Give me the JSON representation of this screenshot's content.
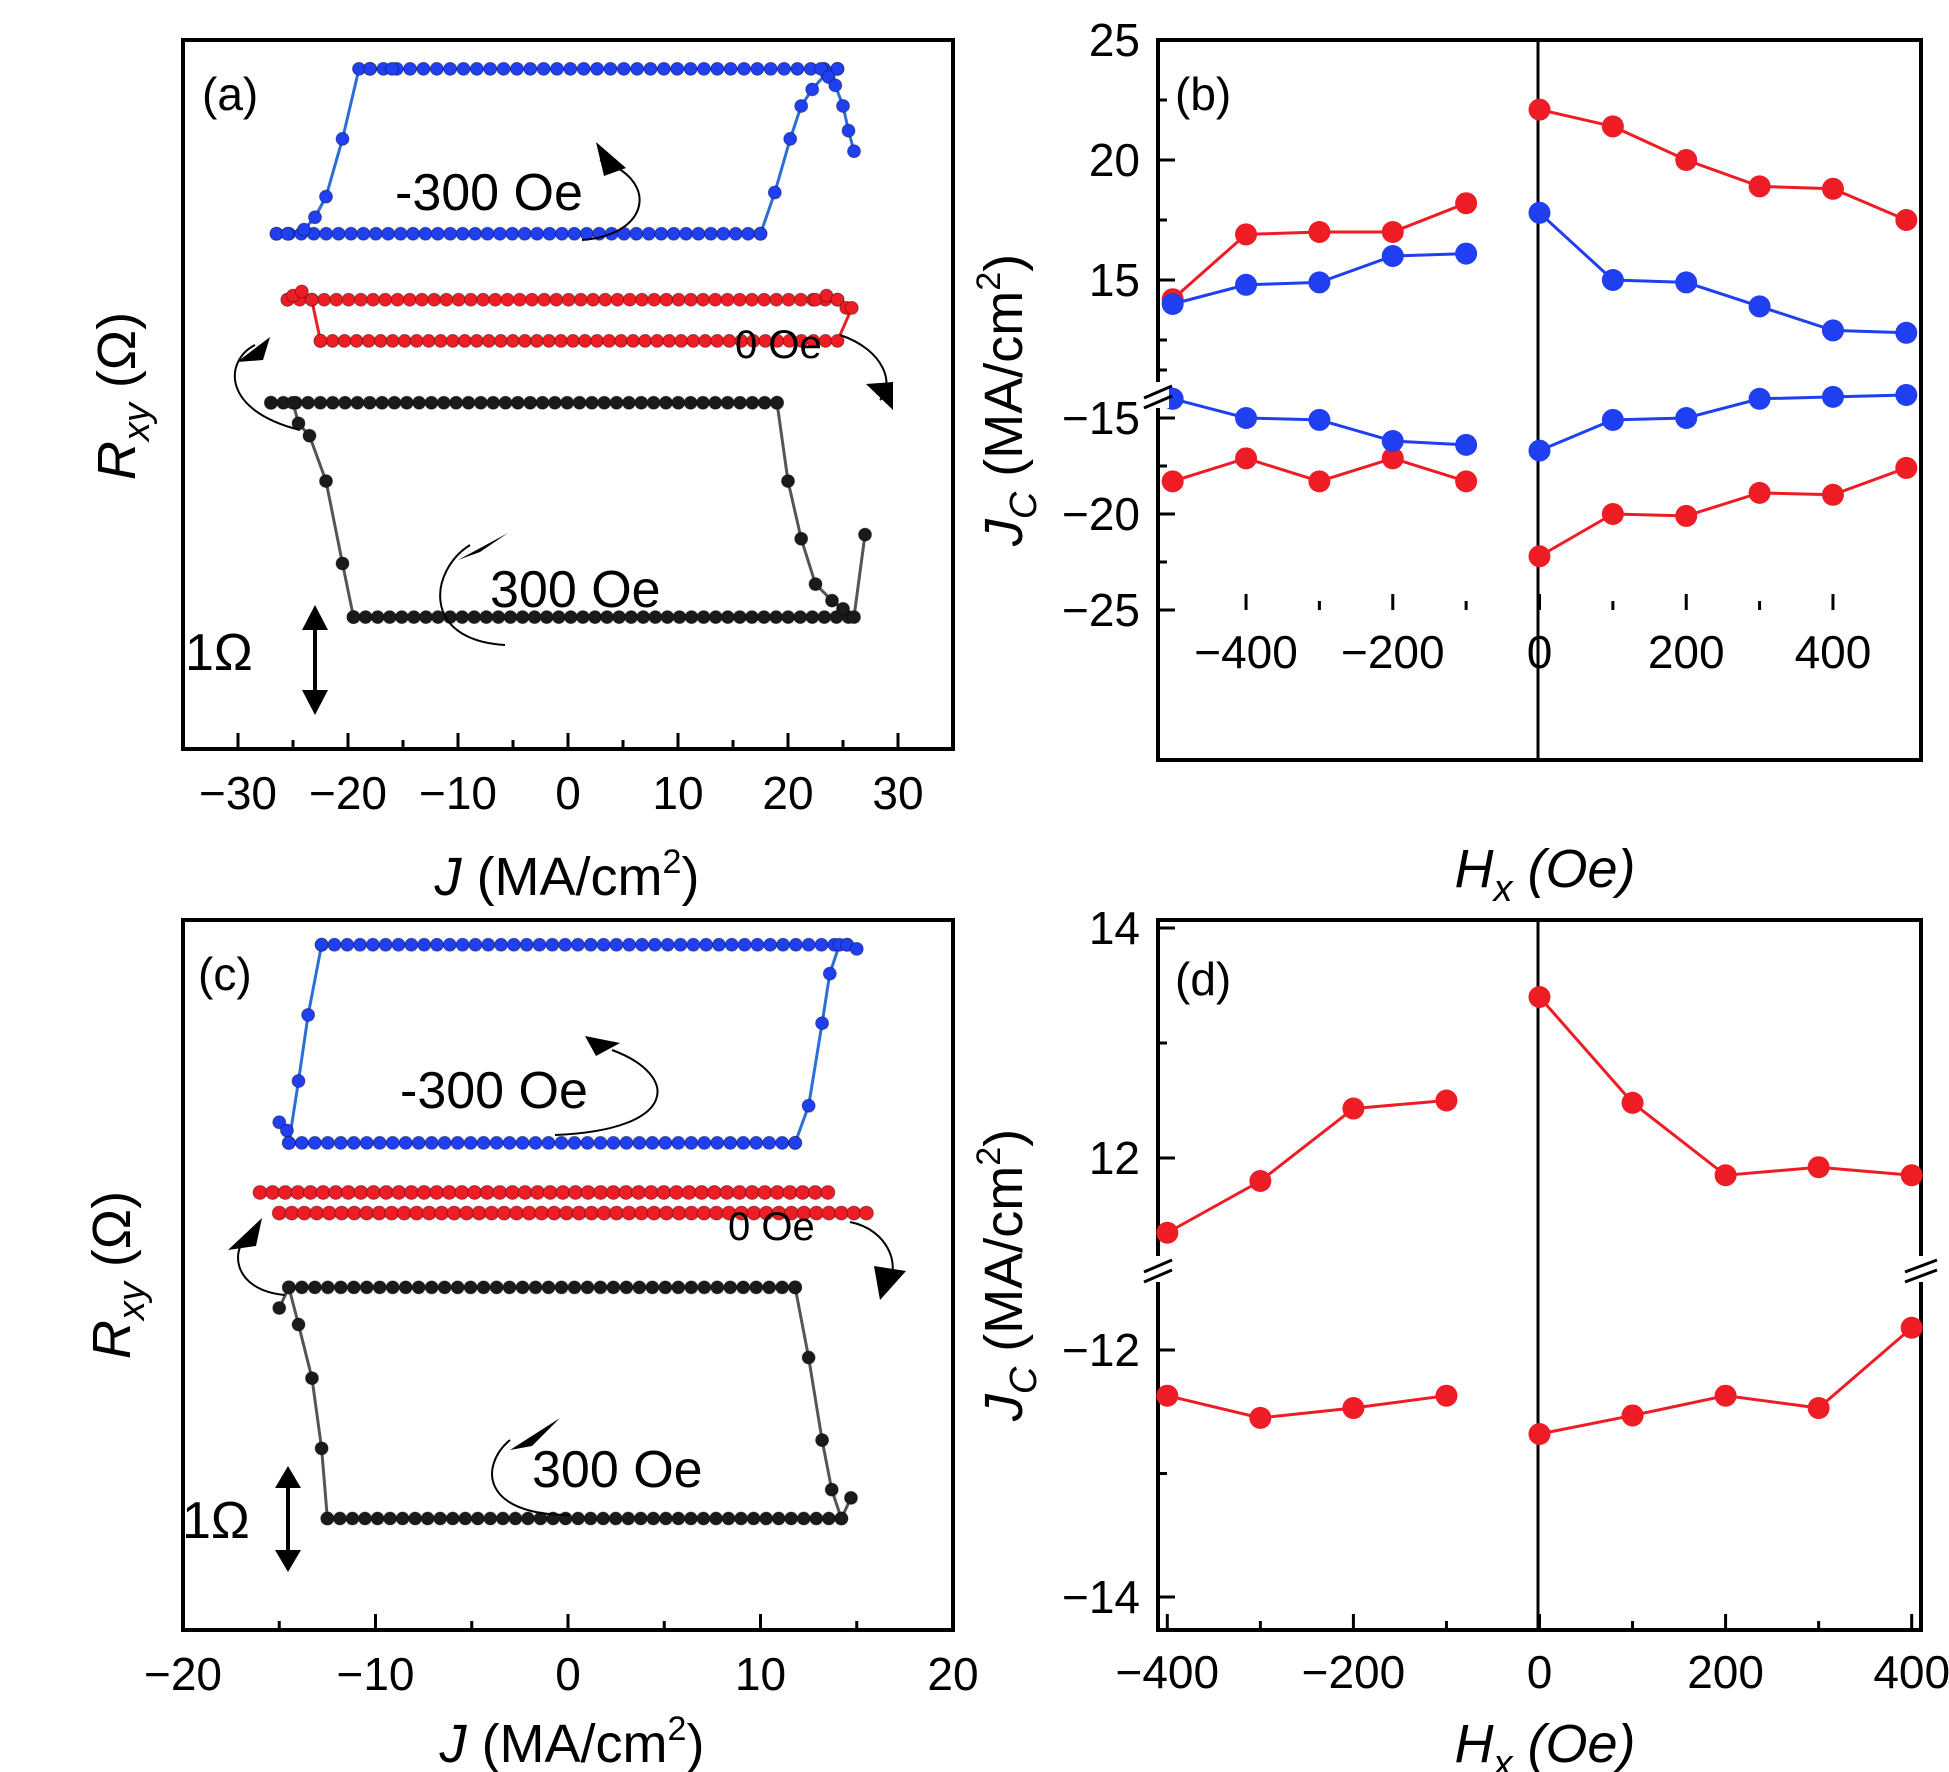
{
  "colors": {
    "blue": "#1f3ff0",
    "red": "#ee1c25",
    "black": "#1a1a1a",
    "axis": "#000000",
    "line_blue": "#2b6fd6"
  },
  "scale_bar_label": "1Ω",
  "chart_data": [
    {
      "panel": "a",
      "label": "(a)",
      "type": "line",
      "xlabel_main": "J",
      "xlabel_unit": "(MA/cm",
      "xlabel_sup": "2",
      "xlabel_close": ")",
      "ylabel_main": "R",
      "ylabel_sub": "xy",
      "ylabel_unit": "(Ω)",
      "xlim": [
        -35,
        35
      ],
      "xticks": [
        -30,
        -20,
        -10,
        0,
        10,
        20,
        30
      ],
      "xtick_labels": [
        "−30",
        "−20",
        "−10",
        "0",
        "10",
        "20",
        "30"
      ],
      "ylim": [
        -7,
        10.2
      ],
      "series": [
        {
          "name": "-300 Oe",
          "label": "-300 Oe",
          "color": "blue",
          "x": [
            -26.5,
            -25.5,
            -24,
            -23,
            -22,
            -20.5,
            -19,
            -18,
            -16,
            22,
            23,
            23.7,
            24.3,
            25,
            25.5,
            26
          ],
          "y": [
            5.5,
            5.5,
            5.6,
            5.9,
            6.4,
            7.8,
            9.5,
            9.5,
            9.5,
            9.5,
            9.5,
            9.3,
            9.1,
            8.6,
            8.0,
            7.5
          ],
          "bottom_start": -26.5,
          "bottom_end": 17.5,
          "top_start": -18,
          "top_end": 24.5,
          "rise_x": [
            17.5,
            18.8,
            20.2,
            21.2,
            22.2,
            23.5,
            24.5
          ],
          "rise_y": [
            5.5,
            6.5,
            7.8,
            8.6,
            9.0,
            9.4,
            9.5
          ]
        },
        {
          "name": "0 Oe",
          "label": "0 Oe",
          "color": "red",
          "top_start": -25.5,
          "top_end": 24.5,
          "top_y": 3.9,
          "bottom_start": -22.5,
          "bottom_end": 24.5,
          "bottom_y": 2.9,
          "left_x": [
            -25.5,
            -25,
            -24.2,
            -23.3,
            -22.5
          ],
          "left_y": [
            3.9,
            4.0,
            4.1,
            3.9,
            2.9
          ],
          "right_x": [
            22.5,
            23.5,
            24.5,
            25.3,
            25.8
          ],
          "right_y": [
            3.9,
            4.0,
            3.9,
            3.7,
            3.7
          ]
        },
        {
          "name": "300 Oe",
          "label": "300 Oe",
          "color": "black",
          "top_start": -27,
          "top_end": 19,
          "top_y": 1.4,
          "bottom_start": -19.5,
          "bottom_end": 25.5,
          "bottom_y": -3.8,
          "left_x": [
            -27,
            -25,
            -24.5,
            -23.5,
            -22,
            -20.5,
            -19.5
          ],
          "left_y": [
            1.4,
            1.4,
            0.9,
            0.6,
            -0.5,
            -2.5,
            -3.8
          ],
          "right_x": [
            19,
            20,
            21.2,
            22.5,
            24,
            25,
            26,
            27
          ],
          "right_y": [
            1.4,
            -0.5,
            -1.9,
            -3.0,
            -3.4,
            -3.6,
            -3.8,
            -1.8
          ]
        }
      ],
      "annotations": [
        "-300 Oe",
        "0 Oe",
        "300 Oe"
      ]
    },
    {
      "panel": "b",
      "label": "(b)",
      "type": "scatter",
      "xlabel_main": "H",
      "xlabel_sub": "x",
      "xlabel_unit": "(Oe)",
      "ylabel_main": "J",
      "ylabel_sub": "C",
      "ylabel_unit": "(MA/cm",
      "ylabel_sup": "2",
      "ylabel_close": ")",
      "xlim": [
        -520,
        520
      ],
      "xticks": [
        -400,
        -200,
        0,
        200,
        400
      ],
      "xtick_labels": [
        "−400",
        "−200",
        "0",
        "200",
        "400"
      ],
      "yticks": [
        25,
        20,
        15,
        -15,
        -20,
        -25
      ],
      "ytick_labels": [
        "25",
        "20",
        "15",
        "−15",
        "−20",
        "−25"
      ],
      "y_break": [
        12,
        -12
      ],
      "series": [
        {
          "name": "red",
          "color": "red",
          "x_left": [
            -500,
            -400,
            -300,
            -200,
            -100
          ],
          "pos_left": [
            14.2,
            16.9,
            17.0,
            17.0,
            18.2
          ],
          "neg_left": [
            -18.3,
            -17.1,
            -18.3,
            -17.1,
            -18.3
          ],
          "x_right": [
            0,
            100,
            200,
            300,
            400,
            500
          ],
          "pos_right": [
            22.1,
            21.4,
            20.0,
            18.9,
            18.8,
            17.5
          ],
          "neg_right": [
            -22.2,
            -20.0,
            -20.1,
            -18.9,
            -19.0,
            -17.6
          ]
        },
        {
          "name": "blue",
          "color": "blue",
          "x_left": [
            -500,
            -400,
            -300,
            -200,
            -100
          ],
          "pos_left": [
            14.0,
            14.8,
            14.9,
            16.0,
            16.1
          ],
          "neg_left": [
            -14.0,
            -15.0,
            -15.1,
            -16.2,
            -16.4
          ],
          "x_right": [
            0,
            100,
            200,
            300,
            400,
            500
          ],
          "pos_right": [
            17.8,
            15.0,
            14.9,
            13.9,
            12.9,
            12.8
          ],
          "neg_right": [
            -16.7,
            -15.1,
            -15.0,
            -14.0,
            -13.9,
            -13.8
          ]
        }
      ]
    },
    {
      "panel": "c",
      "label": "(c)",
      "type": "line",
      "xlabel_main": "J",
      "xlabel_unit": "(MA/cm",
      "xlabel_sup": "2",
      "xlabel_close": ")",
      "ylabel_main": "R",
      "ylabel_sub": "xy",
      "ylabel_unit": "(Ω)",
      "xlim": [
        -20,
        20
      ],
      "xticks": [
        -20,
        -10,
        0,
        10,
        20
      ],
      "xtick_labels": [
        "−20",
        "−10",
        "0",
        "10",
        "20"
      ],
      "ylim": [
        -7,
        10.2
      ],
      "series": [
        {
          "name": "-300 Oe",
          "label": "-300 Oe",
          "color": "blue",
          "top_start": -12.8,
          "top_end": 14.5,
          "top_y": 9.6,
          "bottom_start": -14.5,
          "bottom_end": 11.8,
          "bottom_y": 4.8,
          "left_x": [
            -15,
            -14.6,
            -14.5,
            -14,
            -13.5,
            -12.8
          ],
          "left_y": [
            5.3,
            5.1,
            4.8,
            6.3,
            7.9,
            9.6
          ],
          "right_x": [
            11.8,
            12.5,
            13.2,
            13.6,
            14.1,
            14.5,
            15
          ],
          "right_y": [
            4.8,
            5.7,
            7.7,
            8.9,
            9.6,
            9.6,
            9.5
          ]
        },
        {
          "name": "0 Oe",
          "label": "0 Oe",
          "color": "red",
          "top_start": -16,
          "top_end": 13.5,
          "top_y": 3.6,
          "bottom_start": -15,
          "bottom_end": 15.5,
          "bottom_y": 3.1
        },
        {
          "name": "300 Oe",
          "label": "300 Oe",
          "color": "black",
          "top_start": -14.5,
          "top_end": 11.8,
          "top_y": 1.3,
          "bottom_start": -12.5,
          "bottom_end": 14.2,
          "bottom_y": -4.3,
          "left_x": [
            -15,
            -14.5,
            -14,
            -13.3,
            -12.8,
            -12.5
          ],
          "left_y": [
            0.8,
            1.3,
            0.4,
            -0.9,
            -2.6,
            -4.3
          ],
          "right_x": [
            11.8,
            12.5,
            13.2,
            13.7,
            14.2,
            14.7
          ],
          "right_y": [
            1.3,
            -0.4,
            -2.4,
            -3.6,
            -4.3,
            -3.8
          ]
        }
      ],
      "annotations": [
        "-300 Oe",
        "0 Oe",
        "300 Oe"
      ]
    },
    {
      "panel": "d",
      "label": "(d)",
      "type": "scatter",
      "xlabel_main": "H",
      "xlabel_sub": "x",
      "xlabel_unit": "(Oe)",
      "ylabel_main": "J",
      "ylabel_sub": "C",
      "ylabel_unit": "(MA/cm",
      "ylabel_sup": "2",
      "ylabel_close": ")",
      "xlim": [
        -410,
        410
      ],
      "xticks": [
        -400,
        -200,
        0,
        200,
        400
      ],
      "xtick_labels": [
        "−400",
        "−200",
        "0",
        "200",
        "400"
      ],
      "yticks": [
        14,
        12,
        -12,
        -14
      ],
      "ytick_labels": [
        "14",
        "12",
        "−12",
        "−14"
      ],
      "series": [
        {
          "name": "red",
          "color": "red",
          "x_left": [
            -400,
            -300,
            -200,
            -100
          ],
          "pos_left": [
            11.35,
            11.8,
            12.43,
            12.5
          ],
          "neg_left": [
            -12.37,
            -12.55,
            -12.47,
            -12.37
          ],
          "x_right": [
            0,
            100,
            200,
            300,
            400
          ],
          "pos_right": [
            13.4,
            12.48,
            11.85,
            11.92,
            11.85
          ],
          "neg_right": [
            -12.68,
            -12.53,
            -12.37,
            -12.47,
            -11.82
          ]
        }
      ]
    }
  ]
}
